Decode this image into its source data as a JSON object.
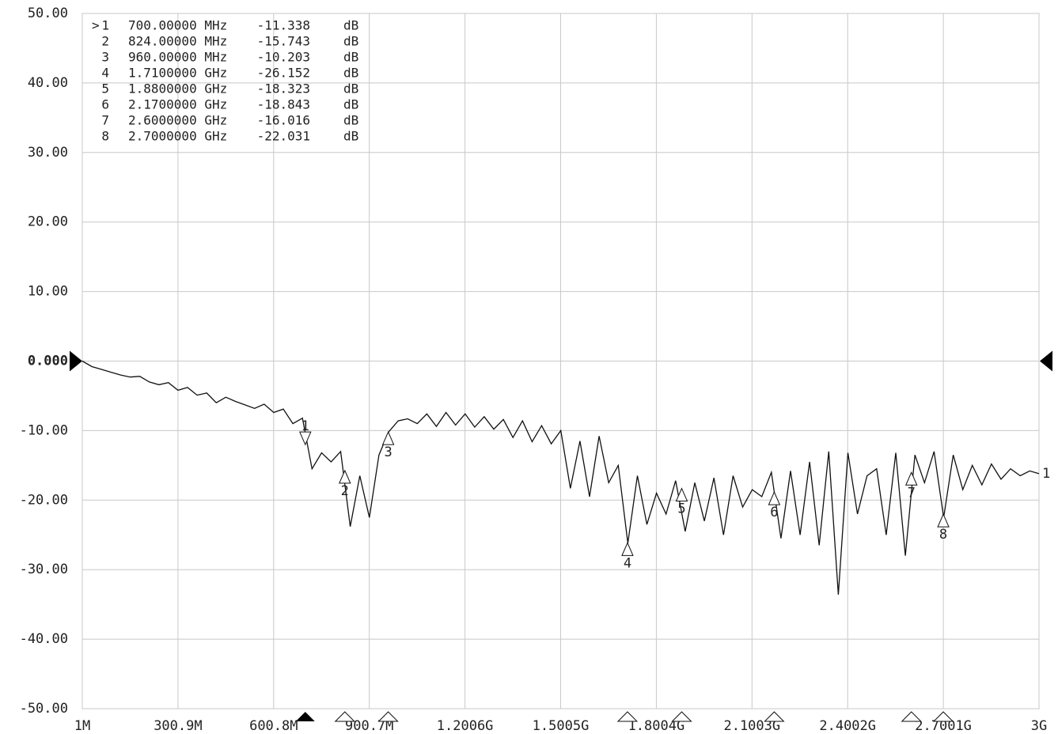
{
  "chart_data": {
    "type": "line",
    "xlim": [
      1,
      3000
    ],
    "ylim": [
      -50,
      50
    ],
    "xticks": [
      {
        "value": 1,
        "label": "1M"
      },
      {
        "value": 300.9,
        "label": "300.9M"
      },
      {
        "value": 600.8,
        "label": "600.8M"
      },
      {
        "value": 900.7,
        "label": "900.7M"
      },
      {
        "value": 1200.6,
        "label": "1.2006G"
      },
      {
        "value": 1500.5,
        "label": "1.5005G"
      },
      {
        "value": 1800.4,
        "label": "1.8004G"
      },
      {
        "value": 2100.3,
        "label": "2.1003G"
      },
      {
        "value": 2400.2,
        "label": "2.4002G"
      },
      {
        "value": 2700.1,
        "label": "2.7001G"
      },
      {
        "value": 3000,
        "label": "3G"
      }
    ],
    "yticks": [
      {
        "value": 50,
        "label": "50.00"
      },
      {
        "value": 40,
        "label": "40.00"
      },
      {
        "value": 30,
        "label": "30.00"
      },
      {
        "value": 20,
        "label": "20.00"
      },
      {
        "value": 10,
        "label": "10.00"
      },
      {
        "value": 0,
        "label": "0.000"
      },
      {
        "value": -10,
        "label": "-10.00"
      },
      {
        "value": -20,
        "label": "-20.00"
      },
      {
        "value": -30,
        "label": "-30.00"
      },
      {
        "value": -40,
        "label": "-40.00"
      },
      {
        "value": -50,
        "label": "-50.00"
      }
    ],
    "grid": true,
    "reference_level": 0,
    "trace_label": "1",
    "active_indicator": ">",
    "marker_unit": "dB",
    "x": [
      1,
      31,
      61,
      91,
      121,
      151,
      181,
      211,
      241,
      271,
      301,
      331,
      361,
      391,
      421,
      451,
      481,
      511,
      541,
      571,
      601,
      631,
      661,
      691,
      721,
      751,
      781,
      811,
      841,
      871,
      901,
      931,
      961,
      991,
      1021,
      1051,
      1081,
      1111,
      1141,
      1171,
      1201,
      1231,
      1261,
      1291,
      1321,
      1351,
      1381,
      1411,
      1441,
      1471,
      1501,
      1531,
      1561,
      1591,
      1621,
      1651,
      1681,
      1711,
      1741,
      1771,
      1801,
      1831,
      1861,
      1891,
      1921,
      1951,
      1981,
      2011,
      2041,
      2071,
      2101,
      2131,
      2161,
      2191,
      2221,
      2251,
      2281,
      2311,
      2341,
      2371,
      2401,
      2431,
      2461,
      2491,
      2521,
      2551,
      2581,
      2611,
      2641,
      2671,
      2701,
      2731,
      2761,
      2791,
      2821,
      2851,
      2881,
      2911,
      2941,
      2971,
      3000
    ],
    "series": [
      {
        "name": "Trace 1",
        "color": "#111111",
        "values": [
          0,
          -0.8,
          -1.2,
          -1.6,
          -2.0,
          -2.3,
          -2.2,
          -3.0,
          -3.4,
          -3.1,
          -4.2,
          -3.8,
          -4.9,
          -4.6,
          -6.0,
          -5.2,
          -5.8,
          -6.3,
          -6.8,
          -6.2,
          -7.4,
          -6.9,
          -9.0,
          -8.2,
          -15.5,
          -13.2,
          -14.5,
          -13.0,
          -23.8,
          -16.5,
          -22.5,
          -13.5,
          -10.2,
          -8.6,
          -8.3,
          -9.0,
          -7.6,
          -9.4,
          -7.4,
          -9.2,
          -7.6,
          -9.5,
          -8.0,
          -9.8,
          -8.4,
          -11.0,
          -8.6,
          -11.6,
          -9.3,
          -11.9,
          -10.0,
          -18.3,
          -11.5,
          -19.5,
          -10.8,
          -17.5,
          -15.0,
          -26.2,
          -16.5,
          -23.5,
          -19.0,
          -22.0,
          -17.2,
          -24.5,
          -17.5,
          -23.0,
          -16.8,
          -25.0,
          -16.5,
          -21.0,
          -18.5,
          -19.5,
          -16.0,
          -25.5,
          -15.8,
          -25.0,
          -14.5,
          -26.5,
          -13.0,
          -33.6,
          -13.2,
          -22.0,
          -16.5,
          -15.5,
          -25.0,
          -13.2,
          -28.0,
          -13.5,
          -17.5,
          -13.0,
          -22.5,
          -13.5,
          -18.5,
          -15.0,
          -17.8,
          -14.8,
          -17.0,
          -15.5,
          -16.5,
          -15.8,
          -16.2
        ]
      }
    ],
    "markers": [
      {
        "label": "1",
        "x": {
          "value": 700,
          "label": "700.00000 MHz"
        },
        "y": -11.338
      },
      {
        "label": "2",
        "x": {
          "value": 824,
          "label": "824.00000 MHz"
        },
        "y": -15.743
      },
      {
        "label": "3",
        "x": {
          "value": 960,
          "label": "960.00000 MHz"
        },
        "y": -10.203
      },
      {
        "label": "4",
        "x": {
          "value": 1710,
          "label": "1.7100000 GHz"
        },
        "y": -26.152
      },
      {
        "label": "5",
        "x": {
          "value": 1880,
          "label": "1.8800000 GHz"
        },
        "y": -18.323
      },
      {
        "label": "6",
        "x": {
          "value": 2170,
          "label": "2.1700000 GHz"
        },
        "y": -18.843
      },
      {
        "label": "7",
        "x": {
          "value": 2600,
          "label": "2.6000000 GHz"
        },
        "y": -16.016
      },
      {
        "label": "8",
        "x": {
          "value": 2700,
          "label": "2.7000000 GHz"
        },
        "y": -22.031
      }
    ]
  }
}
